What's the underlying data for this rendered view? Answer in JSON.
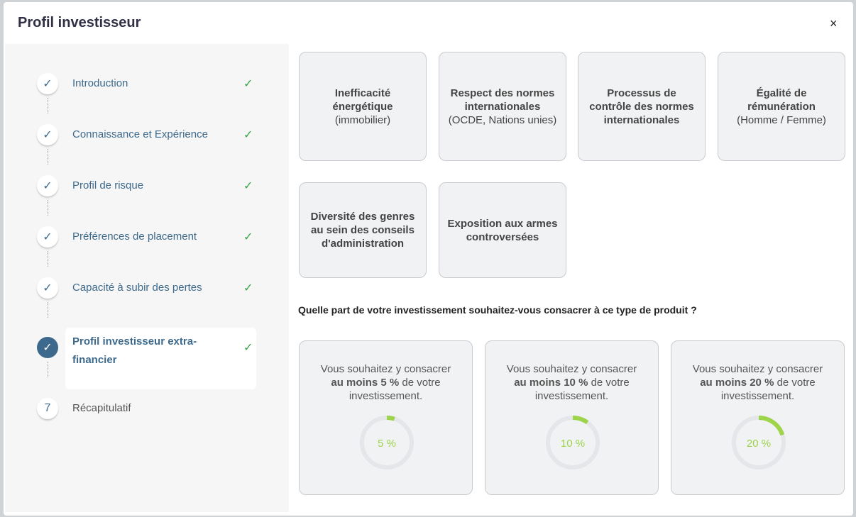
{
  "title": "Profil investisseur",
  "close_label": "×",
  "steps": [
    {
      "label": "Introduction",
      "marker": "✓",
      "done": "✓"
    },
    {
      "label": "Connaissance et Expérience",
      "marker": "✓",
      "done": "✓"
    },
    {
      "label": "Profil de risque",
      "marker": "✓",
      "done": "✓"
    },
    {
      "label": "Préférences de placement",
      "marker": "✓",
      "done": "✓"
    },
    {
      "label": "Capacité à subir des pertes",
      "marker": "✓",
      "done": "✓"
    },
    {
      "label": "Profil investisseur extra-financier",
      "marker": "✓",
      "done": "✓",
      "active": true
    },
    {
      "label": "Récapitulatif",
      "marker": "7"
    }
  ],
  "criteria": [
    {
      "title": "Inefficacité énergétique",
      "sub": "(immobilier)"
    },
    {
      "title": "Respect des normes internationales",
      "sub": "(OCDE, Nations unies)"
    },
    {
      "title": "Processus de contrôle des normes internationales",
      "sub": ""
    },
    {
      "title": "Égalité de rémunération",
      "sub": "(Homme / Femme)"
    },
    {
      "title": "Diversité des genres au sein des conseils d'administration",
      "sub": ""
    },
    {
      "title": "Exposition aux armes controversées",
      "sub": ""
    }
  ],
  "question": "Quelle part de votre investissement souhaitez-vous consacrer à ce type de produit ?",
  "options": [
    {
      "pre": "Vous souhaitez y consacrer",
      "bold": "au moins 5 %",
      "post": " de votre investissement.",
      "percent": 5,
      "gauge_label": "5 %"
    },
    {
      "pre": "Vous souhaitez y consacrer",
      "bold": "au moins 10 %",
      "post": " de votre investissement.",
      "percent": 10,
      "gauge_label": "10 %"
    },
    {
      "pre": "Vous souhaitez y consacrer",
      "bold": "au moins 20 %",
      "post": " de votre investissement.",
      "percent": 20,
      "gauge_label": "20 %"
    }
  ],
  "colors": {
    "accent": "#3d6a8c",
    "check": "#3aa04a",
    "gauge": "#9ed44a",
    "track": "#e4e6ea"
  }
}
